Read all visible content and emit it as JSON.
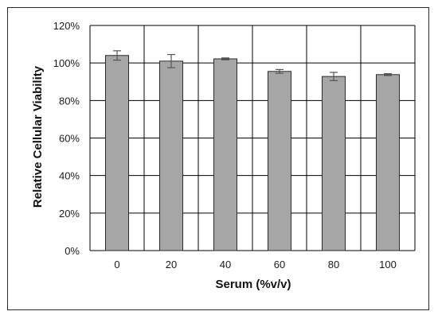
{
  "chart_data": {
    "type": "bar",
    "xlabel": "Serum (%v/v)",
    "ylabel": "Relative Cellular Viability",
    "categories": [
      "0",
      "20",
      "40",
      "60",
      "80",
      "100"
    ],
    "series": [
      {
        "values": [
          104,
          101,
          102.2,
          95.5,
          92.8,
          93.8
        ],
        "errors": [
          2.5,
          3.5,
          0.5,
          1.0,
          2.2,
          0.5
        ]
      }
    ],
    "ylim": [
      0,
      120
    ],
    "yticks": [
      0,
      20,
      40,
      60,
      80,
      100,
      120
    ],
    "ytick_labels": [
      "0%",
      "20%",
      "40%",
      "60%",
      "80%",
      "100%",
      "120%"
    ],
    "grid": true,
    "colors": {
      "bar": "#a6a6a6",
      "bar_stroke": "#2b2b2b",
      "grid": "#000000",
      "error_bar": "#555555"
    }
  }
}
